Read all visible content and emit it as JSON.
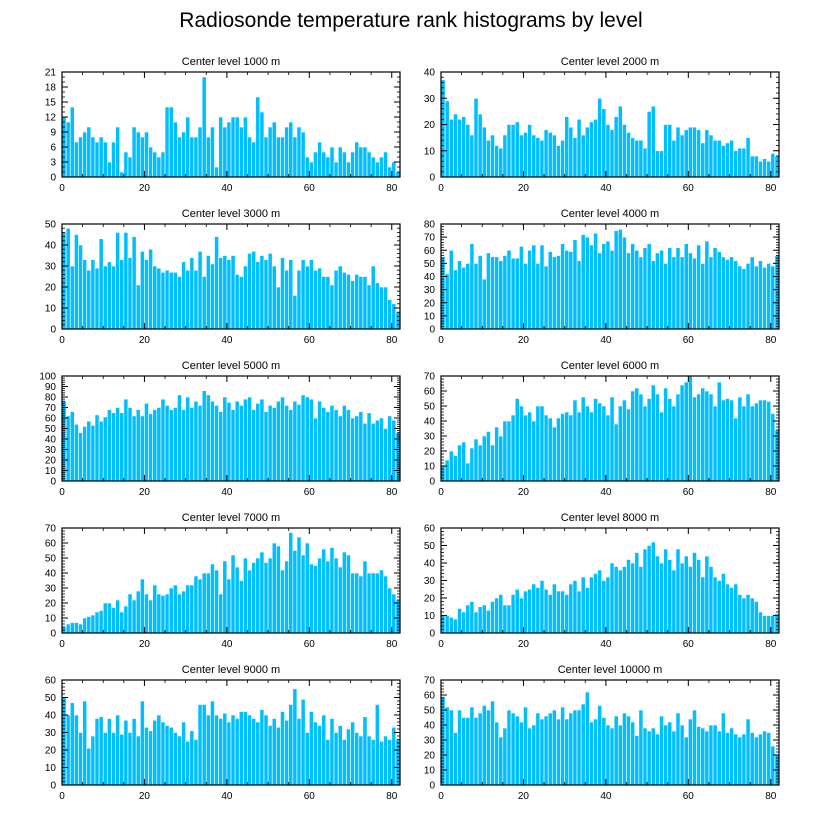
{
  "figure": {
    "title": "Radiosonde temperature rank histograms by level",
    "bar_color": "#00bfff",
    "bar_edge_color": "#ffffff",
    "axis_color": "#000000"
  },
  "chart_data": [
    {
      "type": "bar",
      "title": "Center level 1000 m",
      "xlabel": "",
      "ylabel": "",
      "xlim": [
        0,
        82
      ],
      "ylim": [
        0,
        21
      ],
      "xticks": [
        0,
        20,
        40,
        60,
        80
      ],
      "yticks": [
        0,
        3,
        6,
        9,
        12,
        15,
        18,
        21
      ],
      "values": [
        12,
        11,
        14,
        7,
        8,
        9,
        10,
        8,
        7,
        8,
        7,
        3,
        7,
        10,
        1,
        5,
        4,
        10,
        9,
        8,
        9,
        6,
        5,
        4,
        5,
        14,
        14,
        11,
        8,
        9,
        12,
        8,
        8,
        10,
        20,
        8,
        10,
        2,
        12,
        10,
        11,
        12,
        12,
        10,
        12,
        8,
        7,
        16,
        13,
        8,
        10,
        11,
        8,
        8,
        10,
        11,
        8,
        10,
        9,
        4,
        3,
        5,
        7,
        5,
        4,
        6,
        3,
        6,
        5,
        3,
        5,
        7,
        6,
        6,
        5,
        4,
        3,
        4,
        5,
        2,
        3,
        1
      ]
    },
    {
      "type": "bar",
      "title": "Center level 2000 m",
      "xlabel": "",
      "ylabel": "",
      "xlim": [
        0,
        82
      ],
      "ylim": [
        0,
        40
      ],
      "xticks": [
        0,
        20,
        40,
        60,
        80
      ],
      "yticks": [
        0,
        10,
        20,
        30,
        40
      ],
      "values": [
        37,
        29,
        22,
        24,
        22,
        23,
        20,
        16,
        30,
        24,
        19,
        14,
        16,
        12,
        11,
        16,
        20,
        20,
        21,
        16,
        17,
        20,
        16,
        15,
        14,
        18,
        17,
        16,
        12,
        14,
        23,
        19,
        15,
        22,
        16,
        19,
        21,
        22,
        30,
        26,
        20,
        18,
        23,
        27,
        20,
        17,
        15,
        14,
        14,
        11,
        25,
        27,
        10,
        10,
        20,
        20,
        14,
        19,
        16,
        18,
        19,
        19,
        18,
        13,
        18,
        16,
        14,
        14,
        12,
        13,
        14,
        10,
        11,
        11,
        15,
        8,
        8,
        6,
        7,
        6,
        9,
        8
      ]
    },
    {
      "type": "bar",
      "title": "Center level 3000 m",
      "xlabel": "",
      "ylabel": "",
      "xlim": [
        0,
        82
      ],
      "ylim": [
        0,
        50
      ],
      "xticks": [
        0,
        20,
        40,
        60,
        80
      ],
      "yticks": [
        0,
        10,
        20,
        30,
        40,
        50
      ],
      "values": [
        46,
        48,
        30,
        45,
        40,
        33,
        28,
        33,
        29,
        43,
        30,
        32,
        30,
        46,
        33,
        46,
        34,
        44,
        21,
        37,
        33,
        38,
        30,
        29,
        27,
        28,
        27,
        27,
        25,
        32,
        28,
        34,
        28,
        37,
        25,
        35,
        31,
        44,
        34,
        35,
        33,
        35,
        26,
        25,
        30,
        36,
        37,
        32,
        35,
        33,
        36,
        30,
        20,
        34,
        28,
        33,
        16,
        28,
        33,
        30,
        33,
        28,
        29,
        25,
        25,
        21,
        28,
        30,
        27,
        26,
        23,
        26,
        25,
        25,
        21,
        30,
        22,
        20,
        20,
        14,
        12,
        8
      ]
    },
    {
      "type": "bar",
      "title": "Center level 4000 m",
      "xlabel": "",
      "ylabel": "",
      "xlim": [
        0,
        82
      ],
      "ylim": [
        0,
        80
      ],
      "xticks": [
        0,
        20,
        40,
        60,
        80
      ],
      "yticks": [
        0,
        10,
        20,
        30,
        40,
        50,
        60,
        70,
        80
      ],
      "values": [
        55,
        42,
        60,
        45,
        52,
        47,
        50,
        65,
        50,
        56,
        38,
        58,
        55,
        55,
        52,
        56,
        60,
        54,
        54,
        63,
        50,
        60,
        64,
        50,
        64,
        48,
        59,
        55,
        56,
        65,
        60,
        59,
        68,
        52,
        72,
        70,
        64,
        73,
        58,
        65,
        67,
        60,
        75,
        76,
        70,
        58,
        65,
        60,
        55,
        62,
        65,
        52,
        58,
        60,
        50,
        62,
        55,
        62,
        55,
        65,
        58,
        54,
        64,
        50,
        67,
        55,
        62,
        59,
        55,
        53,
        55,
        52,
        48,
        46,
        50,
        55,
        48,
        52,
        47,
        50,
        48,
        56
      ]
    },
    {
      "type": "bar",
      "title": "Center level 5000 m",
      "xlabel": "",
      "ylabel": "",
      "xlim": [
        0,
        82
      ],
      "ylim": [
        0,
        100
      ],
      "xticks": [
        0,
        20,
        40,
        60,
        80
      ],
      "yticks": [
        0,
        10,
        20,
        30,
        40,
        50,
        60,
        70,
        80,
        90,
        100
      ],
      "values": [
        76,
        62,
        66,
        54,
        46,
        52,
        57,
        53,
        63,
        57,
        61,
        68,
        65,
        70,
        65,
        78,
        70,
        62,
        68,
        62,
        74,
        64,
        68,
        70,
        78,
        72,
        68,
        70,
        82,
        68,
        80,
        70,
        76,
        72,
        86,
        82,
        76,
        72,
        66,
        80,
        75,
        68,
        76,
        72,
        78,
        80,
        68,
        74,
        78,
        66,
        72,
        70,
        76,
        80,
        72,
        68,
        76,
        73,
        82,
        80,
        78,
        60,
        76,
        70,
        66,
        72,
        68,
        62,
        72,
        68,
        60,
        62,
        66,
        55,
        65,
        55,
        58,
        60,
        50,
        62,
        58,
        46
      ]
    },
    {
      "type": "bar",
      "title": "Center level 6000 m",
      "xlabel": "",
      "ylabel": "",
      "xlim": [
        0,
        82
      ],
      "ylim": [
        0,
        70
      ],
      "xticks": [
        0,
        20,
        40,
        60,
        80
      ],
      "yticks": [
        0,
        10,
        20,
        30,
        40,
        50,
        60,
        70
      ],
      "values": [
        10,
        14,
        20,
        17,
        24,
        26,
        12,
        22,
        28,
        24,
        30,
        33,
        24,
        36,
        30,
        40,
        40,
        44,
        55,
        50,
        44,
        46,
        40,
        50,
        50,
        44,
        42,
        36,
        42,
        45,
        46,
        44,
        54,
        46,
        56,
        50,
        46,
        55,
        52,
        50,
        44,
        56,
        38,
        50,
        54,
        48,
        60,
        62,
        58,
        50,
        55,
        64,
        58,
        46,
        62,
        55,
        50,
        58,
        64,
        66,
        70,
        56,
        58,
        62,
        60,
        58,
        50,
        66,
        54,
        55,
        54,
        42,
        56,
        50,
        58,
        50,
        52,
        54,
        54,
        53,
        45,
        34
      ]
    },
    {
      "type": "bar",
      "title": "Center level 7000 m",
      "xlabel": "",
      "ylabel": "",
      "xlim": [
        0,
        82
      ],
      "ylim": [
        0,
        70
      ],
      "xticks": [
        0,
        20,
        40,
        60,
        80
      ],
      "yticks": [
        0,
        10,
        20,
        30,
        40,
        50,
        60,
        70
      ],
      "values": [
        4,
        6,
        7,
        7,
        6,
        10,
        11,
        12,
        14,
        15,
        20,
        20,
        17,
        22,
        14,
        18,
        26,
        22,
        28,
        36,
        26,
        22,
        32,
        26,
        25,
        26,
        30,
        32,
        26,
        28,
        32,
        32,
        38,
        36,
        40,
        40,
        46,
        42,
        26,
        48,
        36,
        52,
        44,
        35,
        50,
        42,
        47,
        50,
        54,
        47,
        50,
        60,
        58,
        42,
        48,
        67,
        55,
        64,
        52,
        60,
        46,
        45,
        50,
        56,
        48,
        57,
        50,
        44,
        54,
        52,
        40,
        40,
        38,
        48,
        40,
        40,
        40,
        42,
        38,
        30,
        26,
        22
      ]
    },
    {
      "type": "bar",
      "title": "Center level 8000 m",
      "xlabel": "",
      "ylabel": "",
      "xlim": [
        0,
        82
      ],
      "ylim": [
        0,
        60
      ],
      "xticks": [
        0,
        20,
        40,
        60,
        80
      ],
      "yticks": [
        0,
        10,
        20,
        30,
        40,
        50,
        60
      ],
      "values": [
        10,
        10,
        9,
        8,
        14,
        12,
        16,
        18,
        12,
        15,
        16,
        13,
        18,
        20,
        22,
        16,
        16,
        22,
        25,
        20,
        24,
        25,
        28,
        26,
        30,
        25,
        22,
        28,
        24,
        24,
        22,
        28,
        30,
        24,
        32,
        26,
        32,
        34,
        36,
        30,
        32,
        40,
        38,
        36,
        38,
        42,
        40,
        46,
        38,
        48,
        50,
        52,
        44,
        40,
        48,
        42,
        36,
        48,
        40,
        44,
        38,
        46,
        42,
        32,
        44,
        38,
        32,
        30,
        34,
        28,
        26,
        28,
        22,
        20,
        22,
        20,
        18,
        12,
        10,
        10,
        10,
        11
      ]
    },
    {
      "type": "bar",
      "title": "Center level 9000 m",
      "xlabel": "",
      "ylabel": "",
      "xlim": [
        0,
        82
      ],
      "ylim": [
        0,
        60
      ],
      "xticks": [
        0,
        20,
        40,
        60,
        80
      ],
      "yticks": [
        0,
        10,
        20,
        30,
        40,
        50,
        60
      ],
      "values": [
        50,
        40,
        47,
        40,
        30,
        48,
        21,
        28,
        38,
        39,
        30,
        38,
        30,
        40,
        29,
        37,
        30,
        38,
        28,
        48,
        33,
        31,
        37,
        40,
        36,
        34,
        33,
        30,
        28,
        36,
        25,
        31,
        26,
        46,
        46,
        40,
        48,
        40,
        38,
        41,
        36,
        40,
        38,
        42,
        42,
        40,
        38,
        36,
        43,
        40,
        34,
        38,
        33,
        42,
        37,
        46,
        55,
        38,
        49,
        30,
        42,
        36,
        34,
        40,
        26,
        38,
        30,
        34,
        26,
        32,
        36,
        30,
        28,
        39,
        28,
        26,
        46,
        25,
        28,
        26,
        33,
        26
      ]
    },
    {
      "type": "bar",
      "title": "Center level 10000 m",
      "xlabel": "",
      "ylabel": "",
      "xlim": [
        0,
        82
      ],
      "ylim": [
        0,
        70
      ],
      "xticks": [
        0,
        20,
        40,
        60,
        80
      ],
      "yticks": [
        0,
        10,
        20,
        30,
        40,
        50,
        60,
        70
      ],
      "values": [
        59,
        52,
        50,
        35,
        50,
        45,
        45,
        52,
        45,
        48,
        53,
        50,
        56,
        42,
        32,
        38,
        50,
        48,
        46,
        42,
        52,
        38,
        40,
        48,
        44,
        46,
        48,
        50,
        44,
        52,
        44,
        48,
        50,
        50,
        54,
        62,
        42,
        44,
        53,
        45,
        40,
        38,
        46,
        40,
        48,
        46,
        42,
        33,
        50,
        38,
        36,
        38,
        34,
        46,
        40,
        42,
        36,
        48,
        40,
        32,
        44,
        50,
        39,
        38,
        36,
        40,
        40,
        36,
        48,
        35,
        38,
        34,
        32,
        34,
        44,
        35,
        32,
        34,
        36,
        35,
        26,
        20
      ]
    }
  ]
}
